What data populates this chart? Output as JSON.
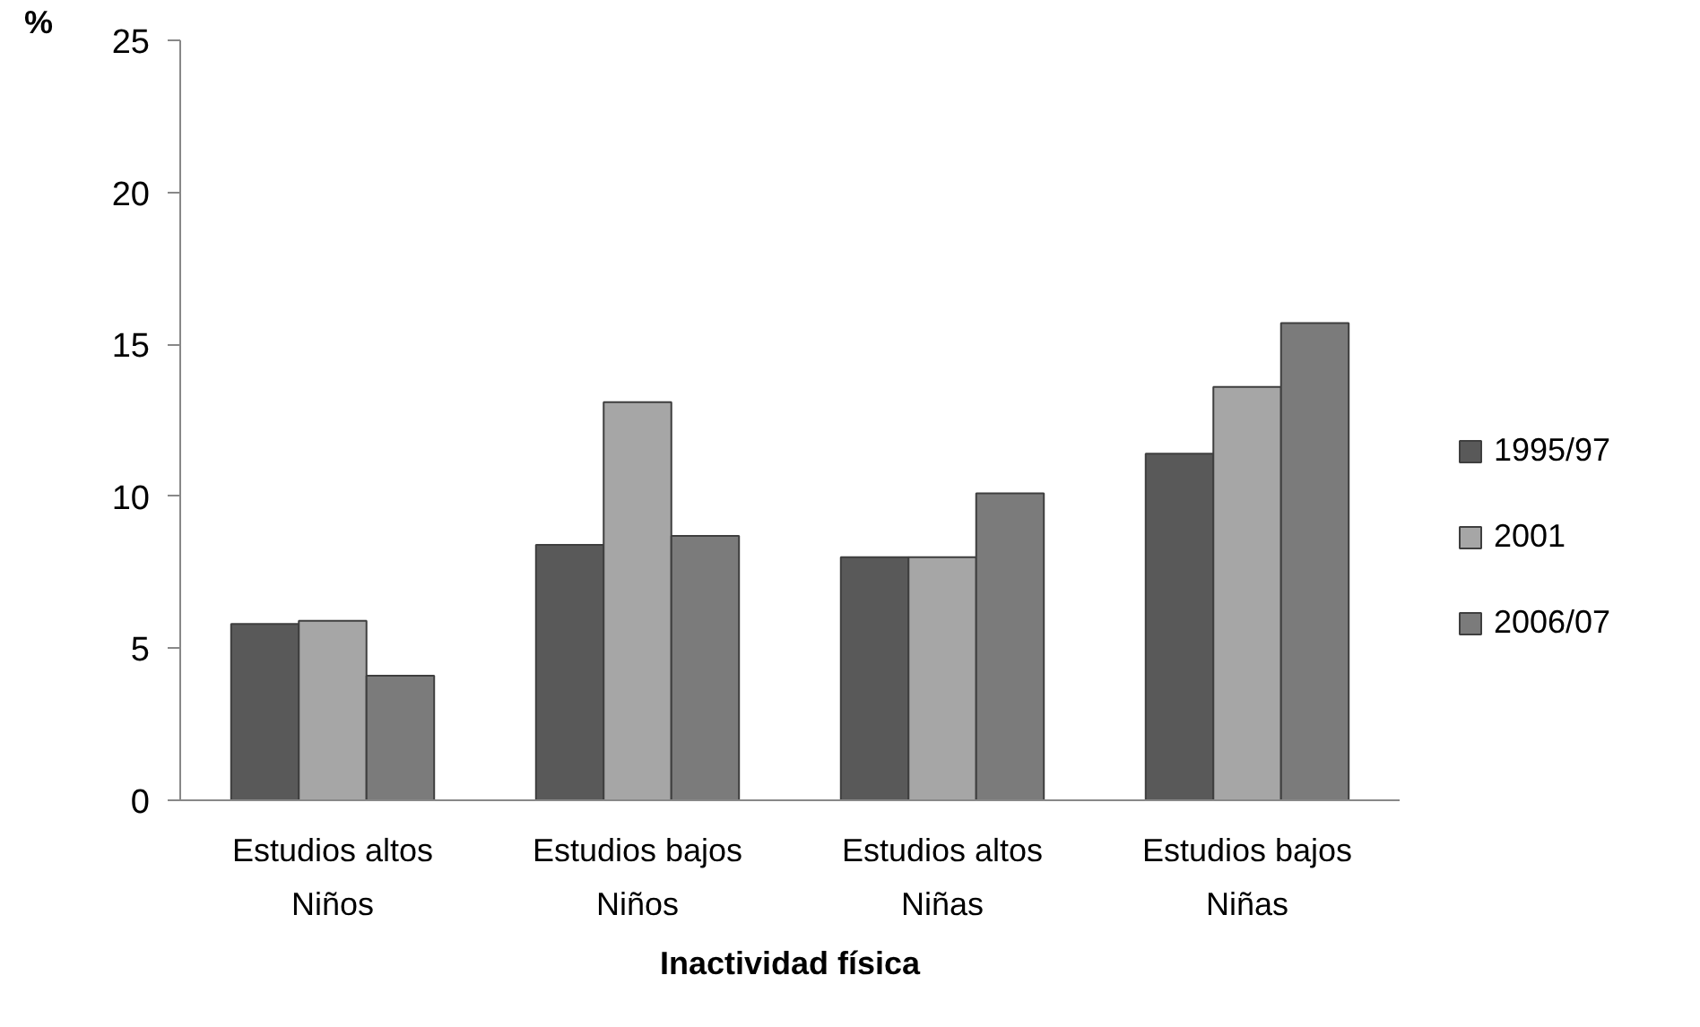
{
  "chart_data": {
    "type": "bar",
    "xlabel": "Inactividad física",
    "ylabel": "%",
    "categories": [
      "Estudios altos\nNiños",
      "Estudios bajos\nNiños",
      "Estudios altos\nNiñas",
      "Estudios bajos\nNiñas"
    ],
    "series": [
      {
        "name": "1995/97",
        "color": "#595959",
        "values": [
          5.8,
          8.4,
          8.0,
          11.4
        ]
      },
      {
        "name": "2001",
        "color": "#a6a6a6",
        "values": [
          5.9,
          13.1,
          8.0,
          13.6
        ]
      },
      {
        "name": "2006/07",
        "color": "#7b7b7b",
        "values": [
          4.1,
          8.7,
          10.1,
          15.7
        ]
      }
    ],
    "ylim": [
      0,
      25
    ],
    "yticks": [
      0,
      5,
      10,
      15,
      20,
      25
    ],
    "grid": false,
    "legend": "right"
  }
}
